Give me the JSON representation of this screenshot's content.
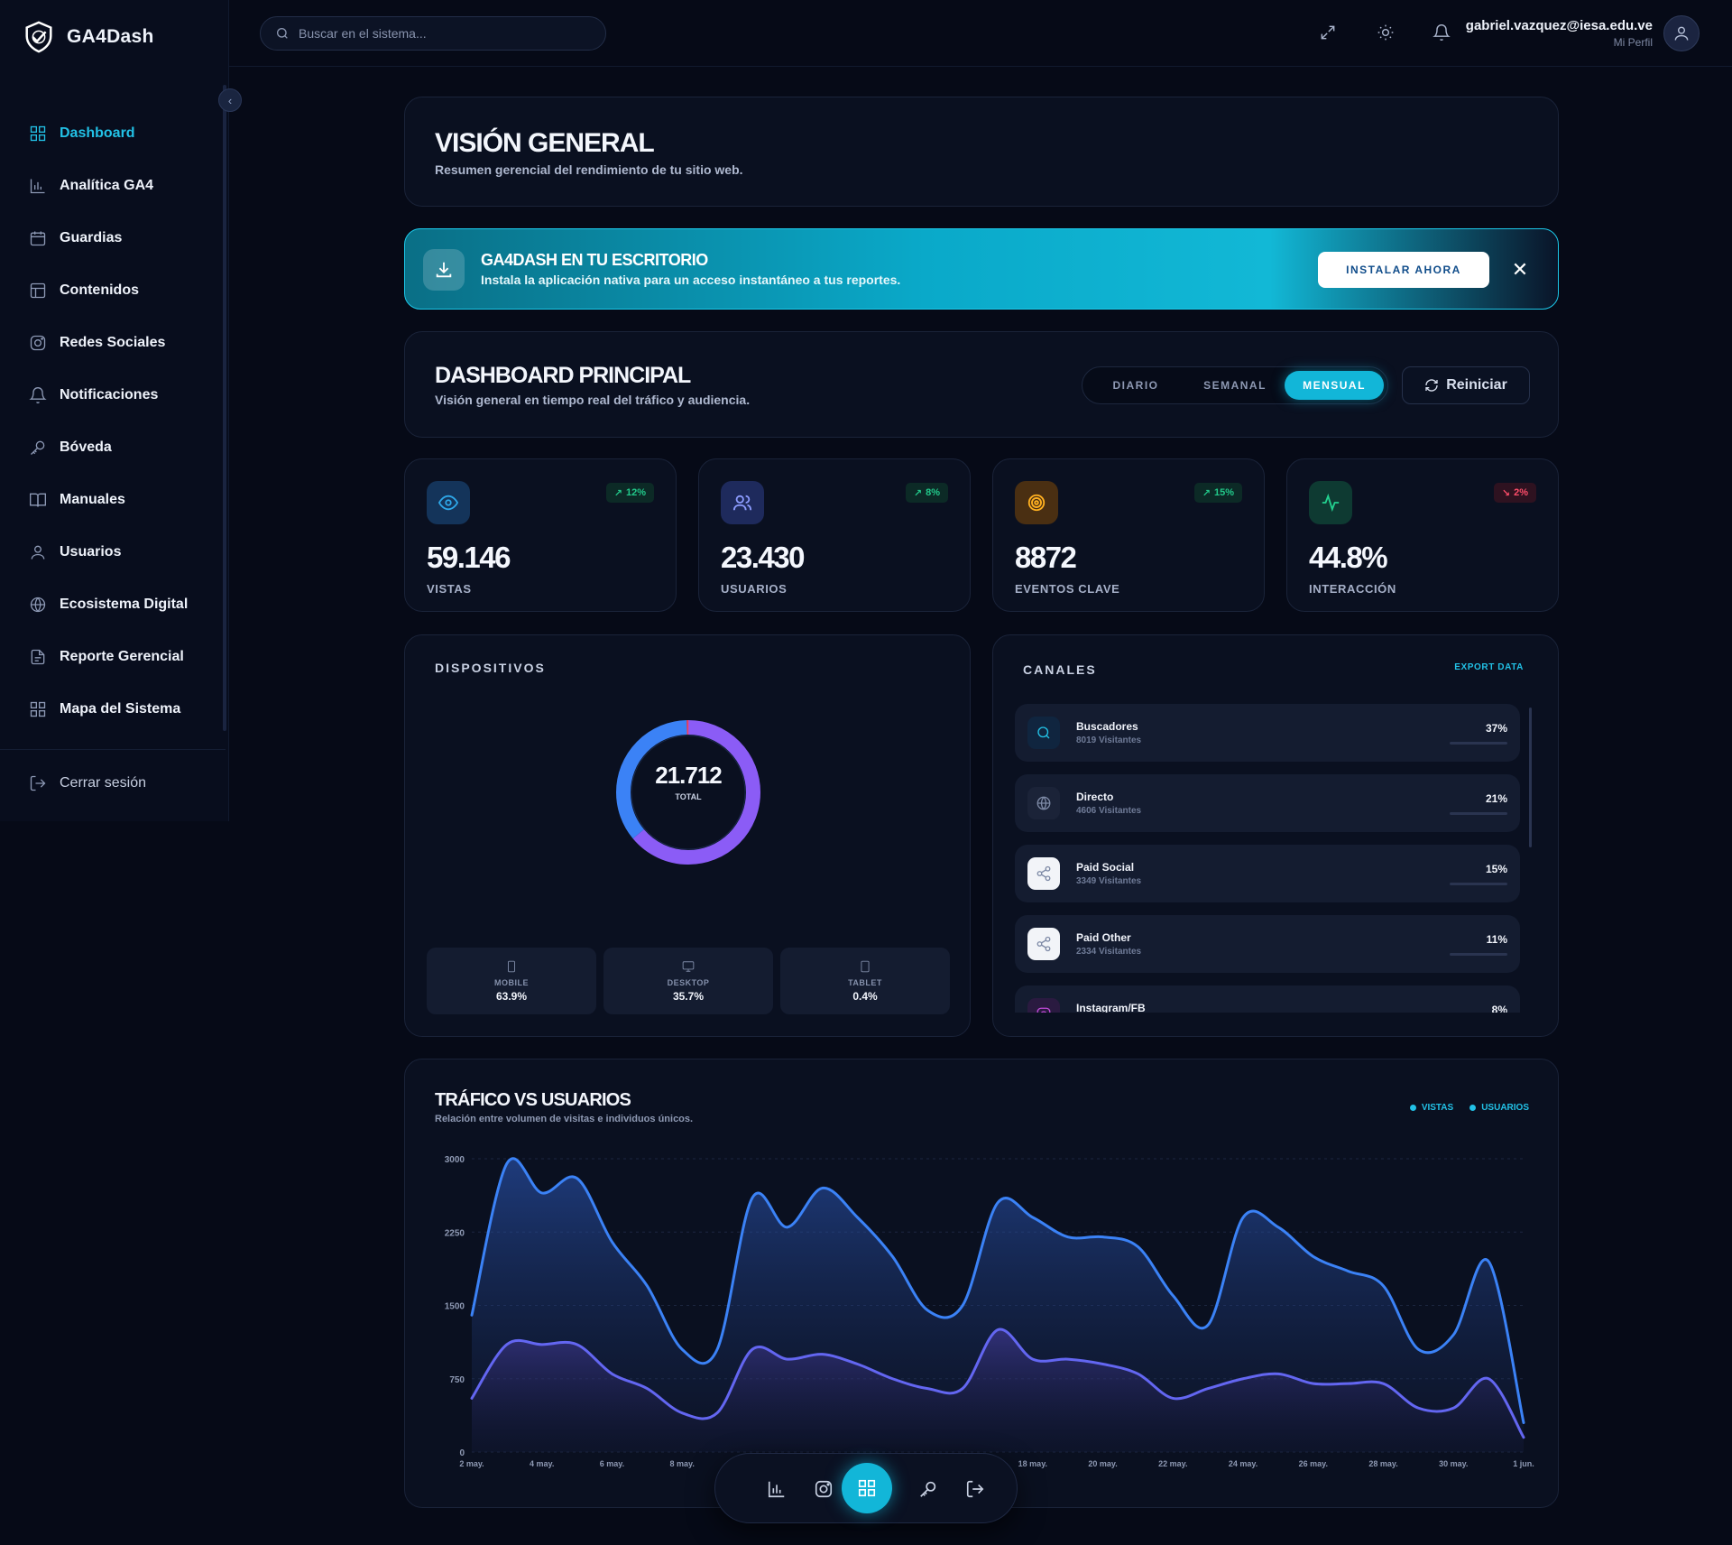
{
  "brand": {
    "name": "GA4Dash"
  },
  "sidebar": {
    "items": [
      {
        "label": "Dashboard",
        "icon": "grid-icon",
        "active": true
      },
      {
        "label": "Analítica GA4",
        "icon": "bar-chart-icon"
      },
      {
        "label": "Guardias",
        "icon": "calendar-icon"
      },
      {
        "label": "Contenidos",
        "icon": "layout-icon"
      },
      {
        "label": "Redes Sociales",
        "icon": "instagram-icon"
      },
      {
        "label": "Notificaciones",
        "icon": "bell-icon"
      },
      {
        "label": "Bóveda",
        "icon": "key-icon"
      },
      {
        "label": "Manuales",
        "icon": "book-icon"
      },
      {
        "label": "Usuarios",
        "icon": "user-icon"
      },
      {
        "label": "Ecosistema Digital",
        "icon": "globe-icon"
      },
      {
        "label": "Reporte Gerencial",
        "icon": "file-icon"
      },
      {
        "label": "Mapa del Sistema",
        "icon": "sitemap-icon"
      }
    ],
    "logout": "Cerrar sesión"
  },
  "header": {
    "search_placeholder": "Buscar en el sistema...",
    "user_email": "gabriel.vazquez@iesa.edu.ve",
    "user_sub": "Mi Perfil"
  },
  "overview": {
    "title": "VISIÓN GENERAL",
    "subtitle": "Resumen gerencial del rendimiento de tu sitio web."
  },
  "banner": {
    "title": "GA4DASH EN TU ESCRITORIO",
    "subtitle": "Instala la aplicación nativa para un acceso instantáneo a tus reportes.",
    "button": "INSTALAR AHORA"
  },
  "dashboard": {
    "title": "DASHBOARD PRINCIPAL",
    "subtitle": "Visión general en tiempo real del tráfico y audiencia.",
    "periods": [
      "DIARIO",
      "SEMANAL",
      "MENSUAL"
    ],
    "active_period": "MENSUAL",
    "reset_label": "Reiniciar"
  },
  "kpis": [
    {
      "value": "59.146",
      "label": "VISTAS",
      "change": "12%",
      "trend": "up",
      "icon": "eye-icon",
      "color": "#2ea7e8",
      "bg": "#14345a"
    },
    {
      "value": "23.430",
      "label": "USUARIOS",
      "change": "8%",
      "trend": "up",
      "icon": "users-icon",
      "color": "#8c9cff",
      "bg": "#1e2a5c"
    },
    {
      "value": "8872",
      "label": "EVENTOS CLAVE",
      "change": "15%",
      "trend": "up",
      "icon": "target-icon",
      "color": "#ffb020",
      "bg": "#4a2f12"
    },
    {
      "value": "44.8%",
      "label": "INTERACCIÓN",
      "change": "2%",
      "trend": "down",
      "icon": "activity-icon",
      "color": "#23d08f",
      "bg": "#0e3a32"
    }
  ],
  "devices": {
    "title": "DISPOSITIVOS",
    "total_value": "21.712",
    "total_label": "TOTAL",
    "items": [
      {
        "name": "MOBILE",
        "value": "63.9%",
        "fraction": 0.639,
        "icon": "smartphone-icon",
        "color": "#8b5cf6"
      },
      {
        "name": "DESKTOP",
        "value": "35.7%",
        "fraction": 0.357,
        "icon": "monitor-icon",
        "color": "#3b82f6"
      },
      {
        "name": "TABLET",
        "value": "0.4%",
        "fraction": 0.004,
        "icon": "tablet-icon",
        "color": "#f43f5e"
      }
    ]
  },
  "channels": {
    "title": "CANALES",
    "export_label": "EXPORT DATA",
    "items": [
      {
        "name": "Buscadores",
        "visits": "8019 Visitantes",
        "pct": "37%",
        "icon": "search-icon",
        "color": "#22c1e6",
        "bg": "#10253f"
      },
      {
        "name": "Directo",
        "visits": "4606 Visitantes",
        "pct": "21%",
        "icon": "globe-icon",
        "color": "#7e8aa6",
        "bg": "#1b2338"
      },
      {
        "name": "Paid Social",
        "visits": "3349 Visitantes",
        "pct": "15%",
        "icon": "share-icon",
        "color": "#7e8aa6",
        "bg": "#f2f4f8"
      },
      {
        "name": "Paid Other",
        "visits": "2334 Visitantes",
        "pct": "11%",
        "icon": "share-icon",
        "color": "#7e8aa6",
        "bg": "#f2f4f8"
      },
      {
        "name": "Instagram/FB",
        "visits": "",
        "pct": "8%",
        "icon": "instagram-icon",
        "color": "#c04bd8",
        "bg": "#2a1a40"
      }
    ]
  },
  "traffic": {
    "title": "TRÁFICO VS USUARIOS",
    "subtitle": "Relación entre volumen de visitas e individuos únicos.",
    "legend": [
      {
        "name": "VISTAS",
        "color": "#3b82f6"
      },
      {
        "name": "USUARIOS",
        "color": "#22c1e6"
      }
    ]
  },
  "chart_data": {
    "type": "area",
    "title": "TRÁFICO VS USUARIOS",
    "x": [
      "2 may.",
      "3 may.",
      "4 may.",
      "5 may.",
      "6 may.",
      "7 may.",
      "8 may.",
      "9 may.",
      "10 may.",
      "11 may.",
      "12 may.",
      "13 may.",
      "14 may.",
      "15 may.",
      "16 may.",
      "17 may.",
      "18 may.",
      "19 may.",
      "20 may.",
      "21 may.",
      "22 may.",
      "23 may.",
      "24 may.",
      "25 may.",
      "26 may.",
      "27 may.",
      "28 may.",
      "29 may.",
      "30 may.",
      "31 may.",
      "1 jun."
    ],
    "x_tick_labels": [
      "2 may.",
      "4 may.",
      "6 may.",
      "8 may.",
      "10 may.",
      "12 may.",
      "14 may.",
      "16 may.",
      "18 may.",
      "20 may.",
      "22 may.",
      "24 may.",
      "26 may.",
      "28 may.",
      "30 may.",
      "1 jun."
    ],
    "y_ticks": [
      0,
      750,
      1500,
      2250,
      3000
    ],
    "ylim": [
      0,
      3000
    ],
    "series": [
      {
        "name": "VISTAS",
        "color": "#3b82f6",
        "values": [
          1400,
          2950,
          2650,
          2800,
          2150,
          1700,
          1050,
          1050,
          2600,
          2300,
          2700,
          2400,
          2000,
          1450,
          1500,
          2550,
          2400,
          2200,
          2200,
          2100,
          1600,
          1300,
          2400,
          2300,
          2000,
          1850,
          1700,
          1050,
          1200,
          1950,
          300
        ]
      },
      {
        "name": "USUARIOS",
        "color": "#6366f1",
        "values": [
          550,
          1100,
          1100,
          1100,
          800,
          650,
          400,
          400,
          1050,
          950,
          1000,
          900,
          750,
          650,
          650,
          1250,
          950,
          950,
          900,
          800,
          550,
          650,
          750,
          800,
          700,
          700,
          700,
          450,
          450,
          750,
          150
        ]
      }
    ]
  },
  "dock": {
    "items": [
      {
        "icon": "bar-chart-icon"
      },
      {
        "icon": "instagram-icon"
      },
      {
        "icon": "grid-icon",
        "active": true
      },
      {
        "icon": "key-icon"
      },
      {
        "icon": "logout-icon"
      }
    ]
  }
}
